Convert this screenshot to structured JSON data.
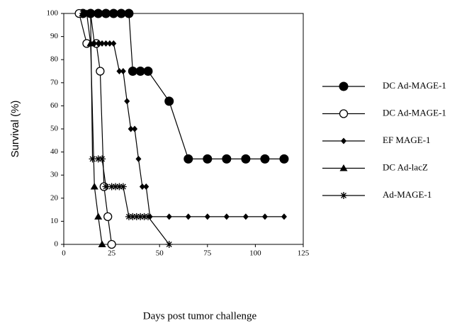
{
  "chart_data": {
    "type": "line",
    "x_label": "Days post tumor challenge",
    "y_label": "Survival (%)",
    "xlim": [
      0,
      125
    ],
    "xticks": [
      0,
      25,
      50,
      75,
      100,
      125
    ],
    "ylim": [
      0,
      100
    ],
    "yticks": [
      0,
      10,
      20,
      30,
      40,
      50,
      60,
      70,
      80,
      90,
      100
    ],
    "grid": false,
    "legend": "right",
    "series": [
      {
        "name": "DC Ad-MAGE-1",
        "color": "#000000",
        "marker": "filled-circle",
        "x": [
          10,
          14,
          18,
          22,
          26,
          30,
          34,
          36,
          40,
          44,
          55,
          65,
          75,
          85,
          95,
          105,
          115
        ],
        "values": [
          100,
          100,
          100,
          100,
          100,
          100,
          100,
          75,
          75,
          75,
          62,
          37,
          37,
          37,
          37,
          37,
          37
        ]
      },
      {
        "name": "DC Ad-MAGE-1",
        "color": "#000000",
        "marker": "open-circle",
        "x": [
          8,
          12,
          17,
          19,
          21,
          23,
          25
        ],
        "values": [
          100,
          87,
          87,
          75,
          25,
          12,
          0
        ]
      },
      {
        "name": "EF MAGE-1",
        "color": "#000000",
        "marker": "diamond",
        "x": [
          10,
          14,
          16,
          18,
          20,
          22,
          24,
          26,
          29,
          31,
          33,
          35,
          37,
          39,
          41,
          43,
          45,
          55,
          65,
          75,
          85,
          95,
          105,
          115
        ],
        "values": [
          100,
          100,
          87,
          87,
          87,
          87,
          87,
          87,
          75,
          75,
          62,
          50,
          50,
          37,
          25,
          25,
          12,
          12,
          12,
          12,
          12,
          12,
          12,
          12
        ]
      },
      {
        "name": "DC Ad-lacZ",
        "color": "#000000",
        "marker": "triangle",
        "x": [
          10,
          12,
          14,
          16,
          18,
          20
        ],
        "values": [
          100,
          100,
          87,
          25,
          12,
          0
        ]
      },
      {
        "name": "Ad-MAGE-1",
        "color": "#000000",
        "marker": "asterisk",
        "x": [
          10,
          14,
          15,
          18,
          20,
          22,
          25,
          27,
          29,
          31,
          34,
          36,
          38,
          40,
          42,
          44,
          55
        ],
        "values": [
          100,
          100,
          37,
          37,
          37,
          25,
          25,
          25,
          25,
          25,
          12,
          12,
          12,
          12,
          12,
          12,
          0
        ]
      }
    ]
  }
}
